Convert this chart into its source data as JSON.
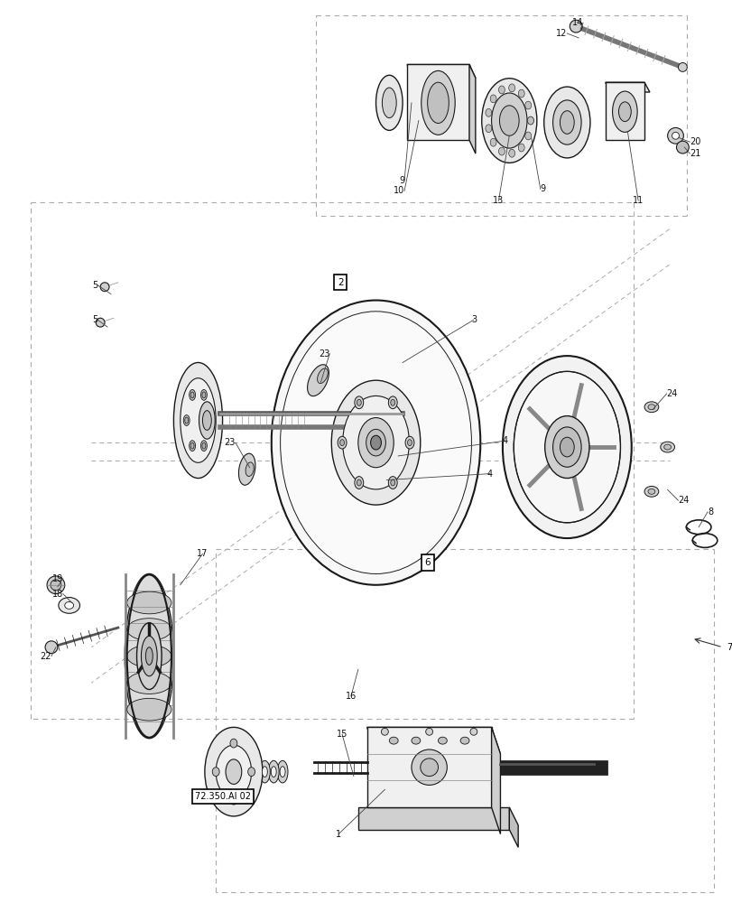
{
  "bg_color": "#ffffff",
  "lc": "#1a1a1a",
  "dc": "#999999",
  "gray1": "#e8e8e8",
  "gray2": "#d0d0d0",
  "gray3": "#c0c0c0",
  "gray4": "#f0f0f0",
  "gray5": "#b0b0b0",
  "fig_w": 8.12,
  "fig_h": 10.0,
  "dpi": 100,
  "fs": 7.0
}
